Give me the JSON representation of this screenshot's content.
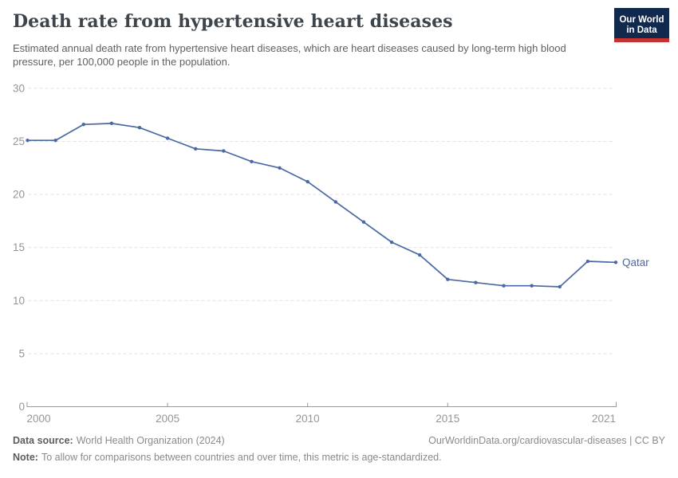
{
  "header": {
    "title": "Death rate from hypertensive heart diseases",
    "subtitle": "Estimated annual death rate from hypertensive heart diseases, which are heart diseases caused by long-term high blood pressure, per 100,000 people in the population.",
    "logo": {
      "line1": "Our World",
      "line2": "in Data"
    }
  },
  "chart_data": {
    "type": "line",
    "title": "Death rate from hypertensive heart diseases",
    "x": [
      2000,
      2001,
      2002,
      2003,
      2004,
      2005,
      2006,
      2007,
      2008,
      2009,
      2010,
      2011,
      2012,
      2013,
      2014,
      2015,
      2016,
      2017,
      2018,
      2019,
      2020,
      2021
    ],
    "series": [
      {
        "name": "Qatar",
        "color": "#4a69a4",
        "values": [
          25.1,
          25.1,
          26.6,
          26.7,
          26.3,
          25.3,
          24.3,
          24.1,
          23.1,
          22.5,
          21.2,
          19.3,
          17.4,
          15.5,
          14.3,
          12.0,
          11.7,
          11.4,
          11.4,
          11.3,
          13.7,
          13.6
        ]
      }
    ],
    "end_label": "Qatar",
    "xticks": [
      2000,
      2005,
      2010,
      2015,
      2021
    ],
    "yticks": [
      0,
      5,
      10,
      15,
      20,
      25,
      30
    ],
    "xlim": [
      2000,
      2021
    ],
    "ylim": [
      0,
      30
    ],
    "grid": "horizontal-dashed",
    "legend": "line-end-label"
  },
  "footer": {
    "source_label": "Data source:",
    "source_text": "World Health Organization (2024)",
    "credit_text": "OurWorldinData.org/cardiovascular-diseases | CC BY",
    "note_label": "Note:",
    "note_text": "To allow for comparisons between countries and over time, this metric is age-standardized."
  },
  "colors": {
    "line": "#4a69a4",
    "grid": "#e2e2e2",
    "axis": "#9a9a9a",
    "tick_label": "#969696",
    "logo_bg": "#12294e",
    "logo_bar": "#c5312f"
  }
}
